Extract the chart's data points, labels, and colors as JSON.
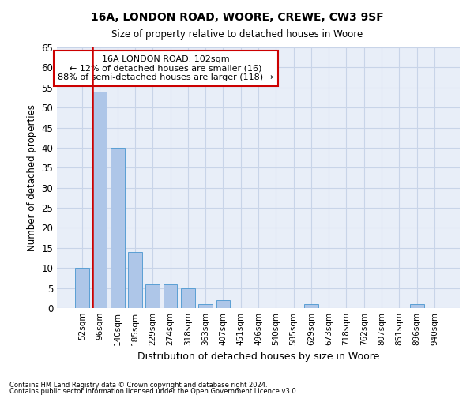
{
  "title1": "16A, LONDON ROAD, WOORE, CREWE, CW3 9SF",
  "title2": "Size of property relative to detached houses in Woore",
  "xlabel": "Distribution of detached houses by size in Woore",
  "ylabel": "Number of detached properties",
  "categories": [
    "52sqm",
    "96sqm",
    "140sqm",
    "185sqm",
    "229sqm",
    "274sqm",
    "318sqm",
    "363sqm",
    "407sqm",
    "451sqm",
    "496sqm",
    "540sqm",
    "585sqm",
    "629sqm",
    "673sqm",
    "718sqm",
    "762sqm",
    "807sqm",
    "851sqm",
    "896sqm",
    "940sqm"
  ],
  "values": [
    10,
    54,
    40,
    14,
    6,
    6,
    5,
    1,
    2,
    0,
    0,
    0,
    0,
    1,
    0,
    0,
    0,
    0,
    0,
    1,
    0
  ],
  "bar_color": "#aec6e8",
  "bar_edge_color": "#5a9fd4",
  "highlight_bar_index": 1,
  "highlight_color": "#cc0000",
  "annotation_title": "16A LONDON ROAD: 102sqm",
  "annotation_line1": "← 12% of detached houses are smaller (16)",
  "annotation_line2": "88% of semi-detached houses are larger (118) →",
  "annotation_box_color": "#ffffff",
  "annotation_box_edge": "#cc0000",
  "footnote1": "Contains HM Land Registry data © Crown copyright and database right 2024.",
  "footnote2": "Contains public sector information licensed under the Open Government Licence v3.0.",
  "ylim": [
    0,
    65
  ],
  "yticks": [
    0,
    5,
    10,
    15,
    20,
    25,
    30,
    35,
    40,
    45,
    50,
    55,
    60,
    65
  ],
  "grid_color": "#c8d4e8",
  "background_color": "#ffffff",
  "plot_bg_color": "#e8eef8"
}
